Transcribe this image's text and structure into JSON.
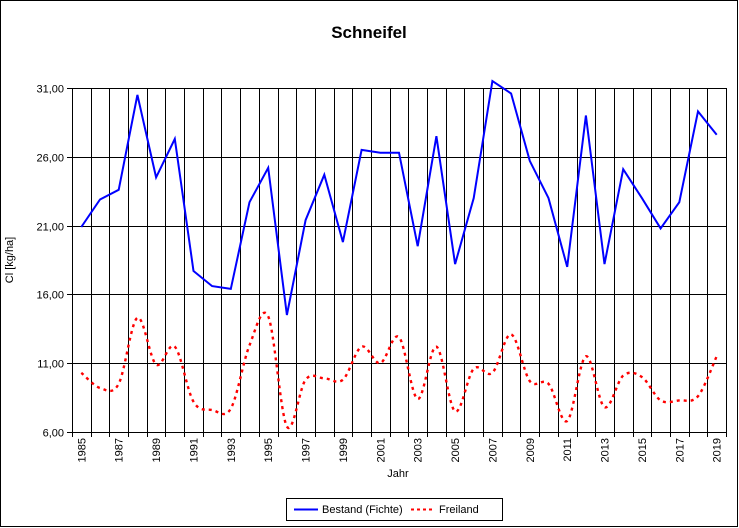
{
  "chart_data": {
    "type": "line",
    "title": "Schneifel",
    "xlabel": "Jahr",
    "ylabel": "Cl [kg/ha]",
    "x": [
      1985,
      1986,
      1987,
      1988,
      1989,
      1990,
      1991,
      1992,
      1993,
      1994,
      1995,
      1996,
      1997,
      1998,
      1999,
      2000,
      2001,
      2002,
      2003,
      2004,
      2005,
      2006,
      2007,
      2008,
      2009,
      2010,
      2011,
      2012,
      2013,
      2014,
      2015,
      2016,
      2017,
      2018,
      2019
    ],
    "ylim": [
      6,
      31
    ],
    "yticks": [
      6,
      11,
      16,
      21,
      26,
      31
    ],
    "ytick_labels": [
      "6,00",
      "11,00",
      "16,00",
      "21,00",
      "26,00",
      "31,00"
    ],
    "xtick_labels": [
      "1985",
      "1987",
      "1989",
      "1991",
      "1993",
      "1995",
      "1997",
      "1999",
      "2001",
      "2003",
      "2005",
      "2007",
      "2009",
      "2011",
      "2013",
      "2015",
      "2017",
      "2019"
    ],
    "grid": true,
    "legend_position": "bottom",
    "series": [
      {
        "name": "Bestand (Fichte)",
        "color": "#0000ff",
        "style": "solid",
        "values": [
          20.9,
          22.9,
          23.6,
          30.5,
          24.5,
          27.3,
          17.7,
          16.6,
          16.4,
          22.7,
          25.2,
          14.5,
          21.4,
          24.7,
          19.8,
          26.5,
          26.3,
          26.3,
          19.5,
          27.5,
          18.2,
          23.0,
          31.5,
          30.6,
          25.7,
          23.0,
          18.0,
          29.0,
          18.2,
          25.1,
          23.0,
          20.8,
          22.7,
          29.3,
          27.6
        ]
      },
      {
        "name": "Freiland",
        "color": "#ff0000",
        "style": "dashed",
        "values": [
          10.3,
          9.2,
          9.5,
          14.3,
          10.9,
          12.2,
          8.2,
          7.6,
          7.7,
          12.3,
          14.4,
          6.4,
          9.8,
          9.9,
          9.8,
          12.2,
          11.0,
          12.9,
          8.4,
          12.2,
          7.5,
          10.6,
          10.3,
          13.1,
          9.7,
          9.5,
          6.8,
          11.5,
          7.8,
          10.1,
          10.0,
          8.3,
          8.3,
          8.6,
          11.5
        ]
      }
    ]
  }
}
